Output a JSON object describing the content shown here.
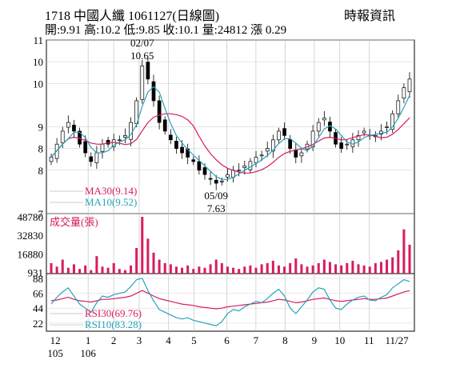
{
  "header": {
    "title": "1718  中國人纖 1061127(日線圖)",
    "ohlc": "開:9.91 高:10.2 低:9.85 收:10.1 量:24812 漲 0.29",
    "source": "時報資訊"
  },
  "chart_data": [
    {
      "type": "candlestick",
      "panel": "price",
      "ylim": [
        7,
        11
      ],
      "y_ticks": [
        "11",
        "10",
        "10",
        "9",
        "8",
        "8",
        "7"
      ],
      "y_tick_values": [
        11,
        10.5,
        10,
        9,
        8.5,
        8,
        7
      ],
      "x_ticks": [
        "12",
        "1",
        "2",
        "3",
        "4",
        "5",
        "6",
        "7",
        "8",
        "9",
        "10",
        "11",
        "11/27"
      ],
      "x_tick_sub": [
        "105",
        "106"
      ],
      "annotations": [
        {
          "date": "02/07",
          "value": "10.65",
          "type": "high"
        },
        {
          "date": "05/09",
          "value": "7.63",
          "type": "low"
        }
      ],
      "legend": [
        {
          "name": "MA30(9.14)",
          "color": "#d81b60"
        },
        {
          "name": "MA10(9.52)",
          "color": "#26a3b8"
        }
      ],
      "candles_note": "daily OHLC, approximate",
      "close_path": [
        8.3,
        8.6,
        8.9,
        9.1,
        8.9,
        8.6,
        8.4,
        8.2,
        8.4,
        8.6,
        8.6,
        8.7,
        8.7,
        8.8,
        9.1,
        9.6,
        10.4,
        10.1,
        9.6,
        9.1,
        8.9,
        8.7,
        8.5,
        8.4,
        8.3,
        8.2,
        8.0,
        7.9,
        7.8,
        7.7,
        7.75,
        7.9,
        8.0,
        8.0,
        8.1,
        8.2,
        8.3,
        8.35,
        8.5,
        8.7,
        8.9,
        8.8,
        8.5,
        8.3,
        8.4,
        8.6,
        8.9,
        9.1,
        9.2,
        8.9,
        8.6,
        8.5,
        8.6,
        8.7,
        8.8,
        8.9,
        8.8,
        8.8,
        8.9,
        9.0,
        9.3,
        9.6,
        9.9,
        10.1
      ]
    },
    {
      "type": "bar",
      "panel": "volume",
      "title": "成交量(張)",
      "y_ticks": [
        "48780",
        "32830",
        "16880",
        "931"
      ],
      "y_tick_values": [
        48780,
        32830,
        16880,
        931
      ],
      "color": "#d81b60",
      "values_note": "daily volume, approximate",
      "values": [
        9000,
        6000,
        12000,
        5000,
        8000,
        4000,
        7000,
        3000,
        15000,
        6000,
        5000,
        9000,
        4000,
        3000,
        7000,
        22000,
        48780,
        30000,
        18000,
        12000,
        9000,
        8000,
        6000,
        5000,
        7000,
        4000,
        6000,
        5000,
        8000,
        12000,
        9000,
        6000,
        5000,
        4000,
        6000,
        7000,
        5000,
        8000,
        9000,
        11000,
        7000,
        6000,
        9000,
        13000,
        8000,
        6000,
        7000,
        9000,
        12000,
        10000,
        8000,
        7000,
        9000,
        11000,
        8000,
        7000,
        6000,
        9000,
        10000,
        12000,
        14000,
        20000,
        38000,
        24812
      ]
    },
    {
      "type": "line",
      "panel": "rsi",
      "y_ticks": [
        "88",
        "66",
        "44",
        "22"
      ],
      "y_tick_values": [
        88,
        66,
        44,
        22
      ],
      "legend": [
        {
          "name": "RSI30(69.76)",
          "color": "#d81b60"
        },
        {
          "name": "RSI10(83.28)",
          "color": "#26a3b8"
        }
      ],
      "series": [
        {
          "name": "RSI30",
          "color": "#d81b60",
          "values": [
            55,
            56,
            58,
            60,
            57,
            55,
            54,
            53,
            55,
            57,
            57,
            58,
            59,
            60,
            62,
            66,
            70,
            66,
            62,
            58,
            56,
            54,
            52,
            50,
            49,
            48,
            46,
            45,
            44,
            43,
            44,
            46,
            47,
            48,
            49,
            50,
            51,
            52,
            53,
            55,
            57,
            56,
            54,
            52,
            53,
            55,
            57,
            58,
            59,
            57,
            55,
            54,
            55,
            56,
            57,
            58,
            57,
            57,
            58,
            59,
            62,
            65,
            68,
            69.76
          ]
        },
        {
          "name": "RSI10",
          "color": "#26a3b8",
          "values": [
            50,
            60,
            68,
            74,
            62,
            50,
            44,
            38,
            52,
            62,
            60,
            64,
            66,
            68,
            76,
            86,
            88,
            70,
            55,
            42,
            38,
            34,
            30,
            28,
            30,
            26,
            24,
            22,
            20,
            18,
            24,
            36,
            42,
            40,
            46,
            50,
            54,
            52,
            58,
            66,
            72,
            62,
            44,
            36,
            46,
            56,
            68,
            74,
            72,
            56,
            44,
            42,
            50,
            56,
            60,
            62,
            56,
            55,
            60,
            64,
            74,
            80,
            86,
            83.28
          ]
        }
      ]
    }
  ]
}
